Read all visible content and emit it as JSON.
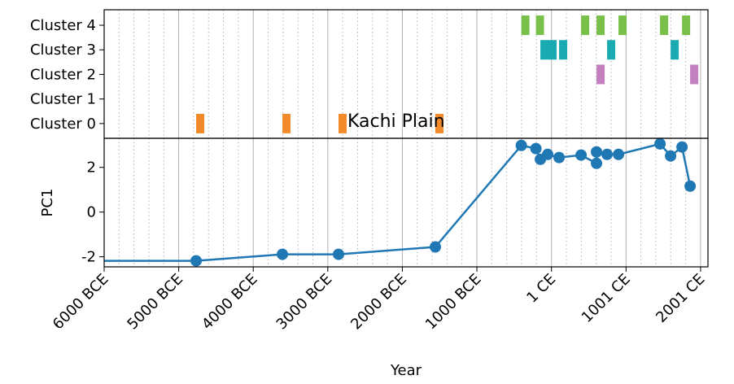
{
  "chart_data": [
    {
      "type": "timeline",
      "annotation": "Kachi Plain",
      "ylim": [
        -0.6,
        4.63
      ],
      "yticks": [
        {
          "value": 0,
          "label": "Cluster 0"
        },
        {
          "value": 1,
          "label": "Cluster 1"
        },
        {
          "value": 2,
          "label": "Cluster 2"
        },
        {
          "value": 3,
          "label": "Cluster 3"
        },
        {
          "value": 4,
          "label": "Cluster 4"
        }
      ],
      "xlim": [
        -6000,
        2100
      ],
      "events": [
        {
          "cluster": 0,
          "start": -4766,
          "end": -4657,
          "color": "#f28a2c"
        },
        {
          "cluster": 0,
          "start": -3609,
          "end": -3500,
          "color": "#f28a2c"
        },
        {
          "cluster": 0,
          "start": -2856,
          "end": -2747,
          "color": "#f28a2c"
        },
        {
          "cluster": 0,
          "start": -1557,
          "end": -1448,
          "color": "#f28a2c"
        },
        {
          "cluster": 2,
          "start": 605,
          "end": 714,
          "color": "#c47fbf"
        },
        {
          "cluster": 2,
          "start": 1861,
          "end": 1970,
          "color": "#c47fbf"
        },
        {
          "cluster": 3,
          "start": -148,
          "end": 70,
          "color": "#1aabb2"
        },
        {
          "cluster": 3,
          "start": 103,
          "end": 212,
          "color": "#1aabb2"
        },
        {
          "cluster": 3,
          "start": 747,
          "end": 856,
          "color": "#1aabb2"
        },
        {
          "cluster": 3,
          "start": 1599,
          "end": 1708,
          "color": "#1aabb2"
        },
        {
          "cluster": 4,
          "start": -404,
          "end": -295,
          "color": "#78c04a"
        },
        {
          "cluster": 4,
          "start": -208,
          "end": -99,
          "color": "#78c04a"
        },
        {
          "cluster": 4,
          "start": 398,
          "end": 507,
          "color": "#78c04a"
        },
        {
          "cluster": 4,
          "start": 605,
          "end": 714,
          "color": "#78c04a"
        },
        {
          "cluster": 4,
          "start": 900,
          "end": 1009,
          "color": "#78c04a"
        },
        {
          "cluster": 4,
          "start": 1457,
          "end": 1566,
          "color": "#78c04a"
        },
        {
          "cluster": 4,
          "start": 1752,
          "end": 1861,
          "color": "#78c04a"
        }
      ]
    },
    {
      "type": "line",
      "x_label": "Year",
      "y_label": "PC1",
      "xlim": [
        -6000,
        2100
      ],
      "ylim": [
        -2.45,
        3.3
      ],
      "xticks": [
        {
          "value": -6000,
          "label": "6000 BCE"
        },
        {
          "value": -5000,
          "label": "5000 BCE"
        },
        {
          "value": -4000,
          "label": "4000 BCE"
        },
        {
          "value": -3000,
          "label": "3000 BCE"
        },
        {
          "value": -2000,
          "label": "2000 BCE"
        },
        {
          "value": -1000,
          "label": "1000 BCE"
        },
        {
          "value": 1,
          "label": "1 CE"
        },
        {
          "value": 1001,
          "label": "1001 CE"
        },
        {
          "value": 2001,
          "label": "2001 CE"
        }
      ],
      "xminorticks": [
        -5800,
        -5600,
        -5400,
        -5200,
        -4800,
        -4600,
        -4400,
        -4200,
        -3800,
        -3600,
        -3400,
        -3200,
        -2800,
        -2600,
        -2400,
        -2200,
        -1800,
        -1600,
        -1400,
        -1200,
        -800,
        -600,
        -400,
        -200,
        201,
        401,
        601,
        801,
        1201,
        1401,
        1601,
        1801
      ],
      "yticks": [
        -2,
        0,
        2
      ],
      "color": "#1f77b4",
      "x": [
        -6500,
        -4766,
        -3609,
        -2856,
        -1557,
        -404,
        -208,
        -148,
        -50,
        103,
        398,
        605,
        605,
        747,
        900,
        1457,
        1599,
        1752,
        1861
      ],
      "values": [
        -2.18,
        -2.18,
        -1.89,
        -1.89,
        -1.56,
        2.98,
        2.84,
        2.36,
        2.58,
        2.44,
        2.55,
        2.18,
        2.69,
        2.58,
        2.58,
        3.05,
        2.51,
        2.91,
        1.16
      ]
    }
  ]
}
